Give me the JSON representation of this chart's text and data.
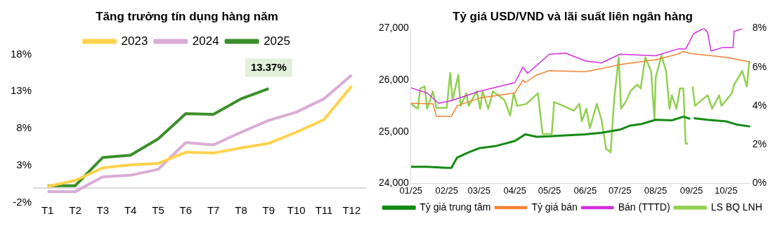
{
  "chart_data": [
    {
      "type": "line",
      "title": "Tăng trưởng tín dụng hàng năm",
      "categories": [
        "T1",
        "T2",
        "T3",
        "T4",
        "T5",
        "T6",
        "T7",
        "T8",
        "T9",
        "T10",
        "T11",
        "T12"
      ],
      "series": [
        {
          "name": "2023",
          "color": "#ffd24d",
          "values": [
            0.2,
            1.0,
            2.7,
            3.1,
            3.3,
            4.8,
            4.7,
            5.4,
            6.0,
            7.5,
            9.2,
            13.7
          ]
        },
        {
          "name": "2024",
          "color": "#d9acd6",
          "values": [
            -0.5,
            -0.5,
            1.5,
            1.7,
            2.5,
            6.1,
            5.8,
            7.5,
            9.1,
            10.2,
            12.0,
            15.2
          ]
        },
        {
          "name": "2025",
          "color": "#3a8f2a",
          "values": [
            0.3,
            0.3,
            4.1,
            4.4,
            6.6,
            10.0,
            9.9,
            12.0,
            13.37,
            null,
            null,
            null
          ]
        }
      ],
      "ylim": [
        -2,
        18
      ],
      "yticks": [
        {
          "value": -2,
          "label": "-2%"
        },
        {
          "value": 3,
          "label": "3%"
        },
        {
          "value": 8,
          "label": "8%"
        },
        {
          "value": 13,
          "label": "13%"
        },
        {
          "value": 18,
          "label": "18%"
        }
      ],
      "annotations": [
        {
          "text": "13.37%",
          "x": "T9",
          "y": 13.37
        }
      ],
      "grid": false,
      "legend": "top",
      "marker": "none",
      "line_style": "solid"
    },
    {
      "type": "line",
      "title": "Tỷ giá USD/VND và lãi suất liên ngân hàng",
      "xlim": [
        "2025-01-01",
        "2025-10-22"
      ],
      "xticks": [
        {
          "value": "2025-01-01",
          "label": "01/25"
        },
        {
          "value": "2025-02-01",
          "label": "02/25"
        },
        {
          "value": "2025-03-01",
          "label": "03/25"
        },
        {
          "value": "2025-04-01",
          "label": "04/25"
        },
        {
          "value": "2025-05-01",
          "label": "05/25"
        },
        {
          "value": "2025-06-01",
          "label": "06/25"
        },
        {
          "value": "2025-07-01",
          "label": "07/25"
        },
        {
          "value": "2025-08-01",
          "label": "08/25"
        },
        {
          "value": "2025-09-01",
          "label": "09/25"
        },
        {
          "value": "2025-10-01",
          "label": "10/25"
        }
      ],
      "ylim": [
        24000,
        27000
      ],
      "yticks": [
        {
          "value": 24000,
          "label": "24,000"
        },
        {
          "value": 25000,
          "label": "25,000"
        },
        {
          "value": 26000,
          "label": "26,000"
        },
        {
          "value": 27000,
          "label": "27,000"
        }
      ],
      "y2lim": [
        0,
        8
      ],
      "y2ticks": [
        {
          "value": 0,
          "label": "0%"
        },
        {
          "value": 2,
          "label": "2%"
        },
        {
          "value": 4,
          "label": "4%"
        },
        {
          "value": 6,
          "label": "6%"
        },
        {
          "value": 8,
          "label": "8%"
        }
      ],
      "series": [
        {
          "name": "Tỷ giá trung tâm",
          "color": "#138a13",
          "x": [
            "2025-01-01",
            "2025-01-15",
            "2025-02-01",
            "2025-02-05",
            "2025-02-10",
            "2025-02-20",
            "2025-03-01",
            "2025-03-15",
            "2025-04-01",
            "2025-04-10",
            "2025-04-20",
            "2025-05-01",
            "2025-05-15",
            "2025-06-01",
            "2025-06-15",
            "2025-07-01",
            "2025-07-10",
            "2025-07-20",
            "2025-08-01",
            "2025-08-15",
            "2025-08-25",
            "2025-08-31",
            "2025-09-01",
            "2025-09-03",
            "2025-09-15",
            "2025-10-01",
            "2025-10-10",
            "2025-10-22"
          ],
          "values": [
            24320,
            24320,
            24300,
            24300,
            24500,
            24600,
            24680,
            24720,
            24820,
            24950,
            24900,
            24910,
            24930,
            24950,
            24980,
            25040,
            25120,
            25150,
            25230,
            25220,
            25290,
            25250,
            null,
            25260,
            25230,
            25200,
            25140,
            25100
          ]
        },
        {
          "name": "Tỷ giá bán",
          "color": "#f58233",
          "x": [
            "2025-01-01",
            "2025-01-20",
            "2025-01-23",
            "2025-02-05",
            "2025-02-10",
            "2025-03-01",
            "2025-04-01",
            "2025-04-08",
            "2025-04-10",
            "2025-04-20",
            "2025-05-01",
            "2025-06-01",
            "2025-06-15",
            "2025-07-01",
            "2025-08-01",
            "2025-08-20",
            "2025-08-25",
            "2025-09-01",
            "2025-10-01",
            "2025-10-22"
          ],
          "values": [
            25550,
            25540,
            25300,
            25300,
            25500,
            25650,
            25750,
            26000,
            25950,
            26100,
            26180,
            26160,
            26220,
            26300,
            26390,
            26500,
            26550,
            26510,
            26440,
            26350
          ]
        },
        {
          "name": "Bán (TTTD)",
          "color": "#d22ee0",
          "x": [
            "2025-01-01",
            "2025-01-15",
            "2025-01-25",
            "2025-02-05",
            "2025-03-01",
            "2025-04-01",
            "2025-04-08",
            "2025-04-12",
            "2025-05-01",
            "2025-05-15",
            "2025-06-01",
            "2025-06-15",
            "2025-07-01",
            "2025-08-01",
            "2025-08-20",
            "2025-08-27",
            "2025-09-03",
            "2025-09-12",
            "2025-09-15",
            "2025-09-18",
            "2025-09-28",
            "2025-10-07",
            "2025-10-08",
            "2025-10-15"
          ],
          "values": [
            25850,
            25750,
            25550,
            25600,
            25780,
            25950,
            26250,
            26130,
            26500,
            26520,
            26370,
            26330,
            26500,
            26470,
            26600,
            26600,
            26900,
            27000,
            26920,
            26560,
            26630,
            26630,
            26940,
            26990
          ]
        },
        {
          "name": "LS BQ LNH",
          "color": "#92d050",
          "axis": "y2",
          "x": [
            "2025-01-01",
            "2025-01-07",
            "2025-01-09",
            "2025-01-13",
            "2025-01-15",
            "2025-01-20",
            "2025-01-23",
            "2025-02-01",
            "2025-02-04",
            "2025-02-06",
            "2025-02-11",
            "2025-02-13",
            "2025-02-18",
            "2025-02-20",
            "2025-02-27",
            "2025-03-02",
            "2025-03-04",
            "2025-03-09",
            "2025-03-13",
            "2025-03-23",
            "2025-03-28",
            "2025-03-31",
            "2025-04-03",
            "2025-04-11",
            "2025-04-21",
            "2025-04-25",
            "2025-05-03",
            "2025-05-05",
            "2025-05-13",
            "2025-05-22",
            "2025-05-27",
            "2025-05-29",
            "2025-06-02",
            "2025-06-05",
            "2025-06-11",
            "2025-06-15",
            "2025-06-19",
            "2025-06-23",
            "2025-06-26",
            "2025-06-30",
            "2025-07-02",
            "2025-07-07",
            "2025-07-10",
            "2025-07-16",
            "2025-07-19",
            "2025-07-23",
            "2025-07-28",
            "2025-07-31",
            "2025-08-01",
            "2025-08-06",
            "2025-08-10",
            "2025-08-13",
            "2025-08-15",
            "2025-08-19",
            "2025-08-22",
            "2025-08-25",
            "2025-08-27",
            "2025-08-29",
            "2025-09-01",
            "2025-09-02",
            "2025-09-04",
            "2025-09-10",
            "2025-09-15",
            "2025-09-19",
            "2025-09-25",
            "2025-09-27",
            "2025-10-06",
            "2025-10-08",
            "2025-10-15",
            "2025-10-19",
            "2025-10-21",
            "2025-10-22"
          ],
          "values": [
            4.1,
            3.85,
            4.9,
            5.0,
            3.85,
            4.75,
            3.9,
            3.9,
            5.7,
            4.3,
            5.6,
            4.0,
            4.65,
            4.0,
            4.75,
            3.85,
            4.75,
            3.85,
            4.75,
            4.3,
            3.5,
            4.65,
            4.0,
            4.1,
            4.65,
            2.55,
            2.55,
            4.2,
            4.0,
            3.75,
            4.1,
            3.2,
            3.85,
            2.85,
            4.1,
            3.3,
            1.8,
            1.6,
            4.3,
            6.5,
            3.85,
            4.3,
            4.75,
            5.1,
            4.9,
            6.5,
            5.8,
            3.3,
            5.45,
            6.6,
            5.8,
            3.85,
            4.55,
            3.85,
            4.9,
            4.9,
            2.05,
            2.05,
            null,
            5.0,
            4.0,
            4.3,
            4.55,
            3.85,
            4.55,
            4.0,
            4.65,
            5.1,
            5.8,
            5.0,
            6.25,
            6.25
          ]
        }
      ],
      "grid": false,
      "legend": "bottom",
      "marker": "none",
      "line_style": "solid"
    }
  ]
}
